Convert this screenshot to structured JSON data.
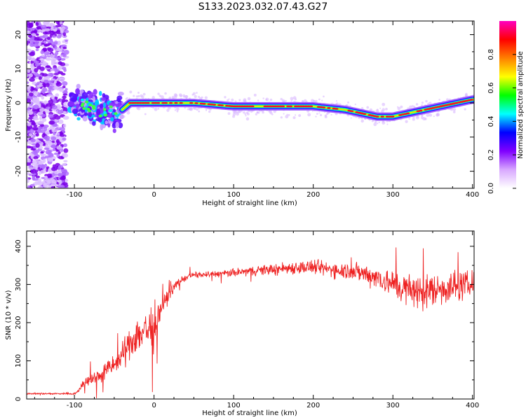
{
  "title": "S133.2023.032.07.43.G27",
  "chart_data": [
    {
      "type": "heatmap",
      "title": "S133.2023.032.07.43.G27",
      "xlabel": "Height of straight line (km)",
      "ylabel": "Frequency (Hz)",
      "xlim": [
        -160,
        402
      ],
      "ylim": [
        -25,
        24
      ],
      "x_ticks": [
        -100,
        0,
        100,
        200,
        300,
        400
      ],
      "y_ticks": [
        -20,
        -10,
        0,
        10,
        20
      ],
      "colorbar": {
        "label": "Normalized spectral amplitude",
        "range": [
          0,
          1
        ],
        "ticks": [
          0.0,
          0.2,
          0.4,
          0.6,
          0.8
        ],
        "colors": [
          "#ffffff",
          "#d8a8ff",
          "#8000ff",
          "#0000ff",
          "#00ffff",
          "#00ff00",
          "#ffff00",
          "#ff8000",
          "#ff0000",
          "#ff00c0"
        ]
      },
      "ridge": {
        "x": [
          -90,
          -70,
          -50,
          -40,
          -30,
          -20,
          0,
          50,
          100,
          150,
          200,
          240,
          260,
          280,
          300,
          320,
          340,
          360,
          380,
          400
        ],
        "y": [
          0,
          -2,
          -3,
          -2,
          0,
          0,
          0,
          0,
          -1,
          -1,
          -1,
          -2,
          -3,
          -4,
          -4,
          -3,
          -2,
          -1,
          0,
          1
        ]
      }
    },
    {
      "type": "line",
      "xlabel": "Height of straight line (km)",
      "ylabel": "SNR (10 * v/v)",
      "xlim": [
        -160,
        402
      ],
      "ylim": [
        0,
        440
      ],
      "x_ticks": [
        -100,
        0,
        100,
        200,
        300,
        400
      ],
      "y_ticks": [
        0,
        100,
        200,
        300,
        400
      ],
      "color": "#ee2222",
      "series": [
        {
          "x": [
            -160,
            -140,
            -120,
            -100,
            -95,
            -90,
            -80,
            -70,
            -60,
            -50,
            -40,
            -30,
            -20,
            -10,
            0,
            5,
            10,
            20,
            30,
            40,
            50,
            60,
            80,
            100,
            120,
            150,
            180,
            200,
            220,
            250,
            280,
            300,
            320,
            340,
            360,
            380,
            400
          ],
          "y": [
            14,
            14,
            14,
            14,
            20,
            40,
            50,
            60,
            75,
            90,
            110,
            150,
            170,
            180,
            190,
            210,
            240,
            280,
            305,
            318,
            325,
            325,
            328,
            330,
            335,
            340,
            345,
            345,
            340,
            335,
            320,
            300,
            285,
            280,
            290,
            295,
            300
          ],
          "spread": [
            3,
            3,
            3,
            4,
            6,
            15,
            25,
            30,
            35,
            40,
            50,
            60,
            80,
            90,
            100,
            60,
            40,
            20,
            15,
            12,
            12,
            12,
            13,
            15,
            18,
            22,
            26,
            28,
            30,
            35,
            45,
            55,
            65,
            70,
            65,
            60,
            50
          ]
        }
      ]
    }
  ]
}
